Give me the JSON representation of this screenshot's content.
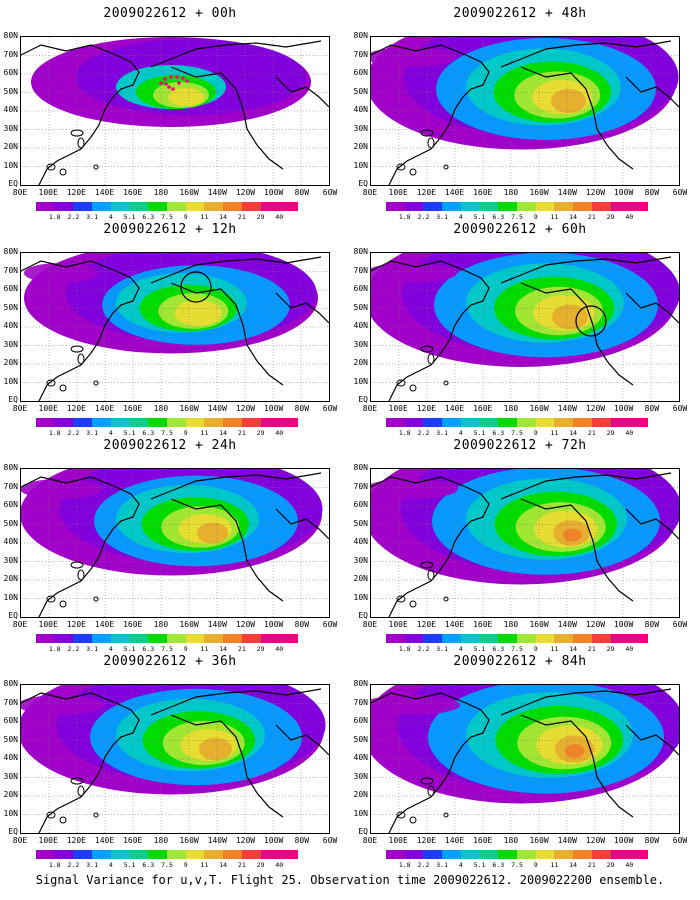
{
  "panels": [
    {
      "title": "2009022612 + 00h",
      "intensity": 0.0,
      "marker": "dots"
    },
    {
      "title": "2009022612 + 48h",
      "intensity": 0.75,
      "marker": "none"
    },
    {
      "title": "2009022612 + 12h",
      "intensity": 0.35,
      "marker": "circle-west"
    },
    {
      "title": "2009022612 + 60h",
      "intensity": 0.8,
      "marker": "circle-east"
    },
    {
      "title": "2009022612 + 24h",
      "intensity": 0.55,
      "marker": "none"
    },
    {
      "title": "2009022612 + 72h",
      "intensity": 0.85,
      "marker": "none"
    },
    {
      "title": "2009022612 + 36h",
      "intensity": 0.65,
      "marker": "none"
    },
    {
      "title": "2009022612 + 84h",
      "intensity": 0.95,
      "marker": "none"
    }
  ],
  "lat_labels": [
    "80N",
    "70N",
    "60N",
    "50N",
    "40N",
    "30N",
    "20N",
    "10N",
    "EQ"
  ],
  "lon_labels": [
    "80E",
    "100E",
    "120E",
    "140E",
    "160E",
    "180",
    "160W",
    "140W",
    "120W",
    "100W",
    "80W",
    "60W"
  ],
  "colorbar": {
    "ticks": [
      "1.8",
      "2.2",
      "3.1",
      "4",
      "5.1",
      "6.3",
      "7.5",
      "9",
      "11",
      "14",
      "21",
      "29",
      "40"
    ],
    "colors": [
      "#a000c8",
      "#8200dc",
      "#1e3cff",
      "#00a0ff",
      "#00c8c8",
      "#00d28c",
      "#00dc00",
      "#a0e632",
      "#e6dc32",
      "#e6af2d",
      "#f08228",
      "#fa3c3c",
      "#f00082"
    ]
  },
  "caption": "Signal Variance for u,v,T. Flight 25. Observation time 2009022612. 2009022200 ensemble."
}
